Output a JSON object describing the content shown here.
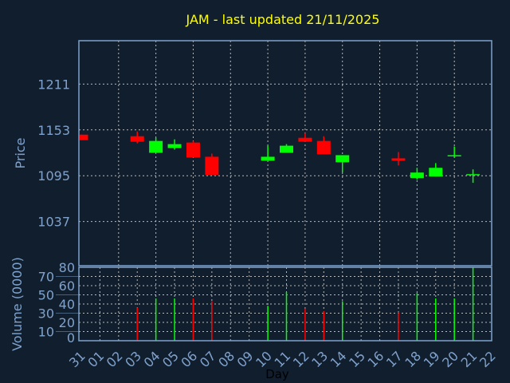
{
  "chart_data": {
    "type": "candlestick",
    "title": "JAM - last updated 21/11/2025",
    "xlabel": "Day",
    "ylabel": "Price",
    "volume_label": "Volume (0000)",
    "x_ticks": [
      "31",
      "01",
      "02",
      "03",
      "04",
      "05",
      "06",
      "07",
      "08",
      "09",
      "10",
      "11",
      "12",
      "13",
      "14",
      "15",
      "16",
      "17",
      "18",
      "19",
      "20",
      "21",
      "22"
    ],
    "y_ticks": [
      1037,
      1095,
      1153,
      1211
    ],
    "ylim": [
      981,
      1266
    ],
    "volume_ticks": [
      0,
      10,
      20,
      30,
      40,
      50,
      60,
      70,
      80
    ],
    "volume_ylim": [
      0,
      80
    ],
    "colors": {
      "up": "#00ff00",
      "down": "#ff0000",
      "title": "#ffff00",
      "axis": "#7fa2cc",
      "background": "#111e2e"
    },
    "candles": [
      {
        "day": "31",
        "open": 1147,
        "high": 1147,
        "low": 1140,
        "close": 1140,
        "volume": null
      },
      {
        "day": "03",
        "open": 1145,
        "high": 1151,
        "low": 1136,
        "close": 1138,
        "volume": 36
      },
      {
        "day": "04",
        "open": 1124,
        "high": 1143,
        "low": 1124,
        "close": 1139,
        "volume": 46
      },
      {
        "day": "05",
        "open": 1130,
        "high": 1141,
        "low": 1128,
        "close": 1135,
        "volume": 46
      },
      {
        "day": "06",
        "open": 1137,
        "high": 1139,
        "low": 1118,
        "close": 1118,
        "volume": 46
      },
      {
        "day": "07",
        "open": 1119,
        "high": 1123,
        "low": 1096,
        "close": 1096,
        "volume": 43
      },
      {
        "day": "10",
        "open": 1114,
        "high": 1133,
        "low": 1114,
        "close": 1119,
        "volume": 38
      },
      {
        "day": "11",
        "open": 1124,
        "high": 1135,
        "low": 1124,
        "close": 1133,
        "volume": 53
      },
      {
        "day": "12",
        "open": 1143,
        "high": 1149,
        "low": 1138,
        "close": 1138,
        "volume": 35
      },
      {
        "day": "13",
        "open": 1139,
        "high": 1145,
        "low": 1122,
        "close": 1122,
        "volume": 32
      },
      {
        "day": "14",
        "open": 1112,
        "high": 1121,
        "low": 1099,
        "close": 1121,
        "volume": 43
      },
      {
        "day": "17",
        "open": 1117,
        "high": 1125,
        "low": 1108,
        "close": 1114,
        "volume": 31
      },
      {
        "day": "18",
        "open": 1092,
        "high": 1105,
        "low": 1090,
        "close": 1099,
        "volume": 52
      },
      {
        "day": "19",
        "open": 1094,
        "high": 1111,
        "low": 1094,
        "close": 1105,
        "volume": 46
      },
      {
        "day": "20",
        "open": 1119.5,
        "high": 1132,
        "low": 1118,
        "close": 1121,
        "volume": 46
      },
      {
        "day": "21",
        "open": 1096,
        "high": 1103,
        "low": 1086,
        "close": 1097,
        "volume": 80
      }
    ]
  }
}
